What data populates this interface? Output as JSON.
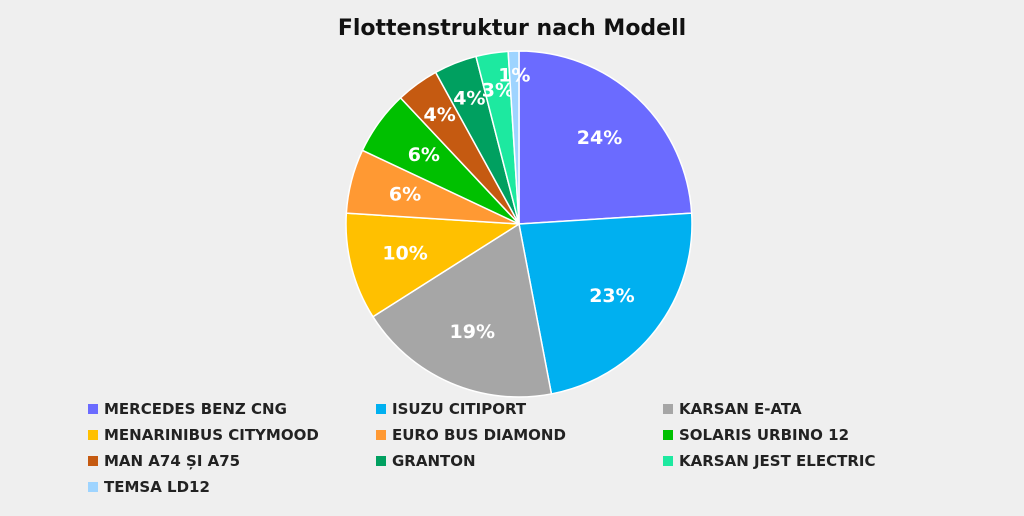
{
  "chart_data": {
    "type": "pie",
    "title": "Flottenstruktur nach Modell",
    "legend_position": "bottom",
    "slices": [
      {
        "label": "MERCEDES BENZ CNG",
        "value": 24,
        "display": "24%",
        "color": "#6b6bff"
      },
      {
        "label": "ISUZU CITIPORT",
        "value": 23,
        "display": "23%",
        "color": "#00b0f0"
      },
      {
        "label": "KARSAN E-ATA",
        "value": 19,
        "display": "19%",
        "color": "#a6a6a6"
      },
      {
        "label": "MENARINIBUS CITYMOOD",
        "value": 10,
        "display": "10%",
        "color": "#ffc000"
      },
      {
        "label": "EURO BUS DIAMOND",
        "value": 6,
        "display": "6%",
        "color": "#ff9933"
      },
      {
        "label": "SOLARIS URBINO 12",
        "value": 6,
        "display": "6%",
        "color": "#00c000"
      },
      {
        "label": "MAN A74 ȘI A75",
        "value": 4,
        "display": "4%",
        "color": "#c55a11"
      },
      {
        "label": "GRANTON",
        "value": 4,
        "display": "4%",
        "color": "#00a060"
      },
      {
        "label": "KARSAN JEST ELECTRIC",
        "value": 3,
        "display": "3%",
        "color": "#1de9a0"
      },
      {
        "label": "TEMSA LD12",
        "value": 1,
        "display": "1%",
        "color": "#9ed4ff"
      }
    ]
  }
}
